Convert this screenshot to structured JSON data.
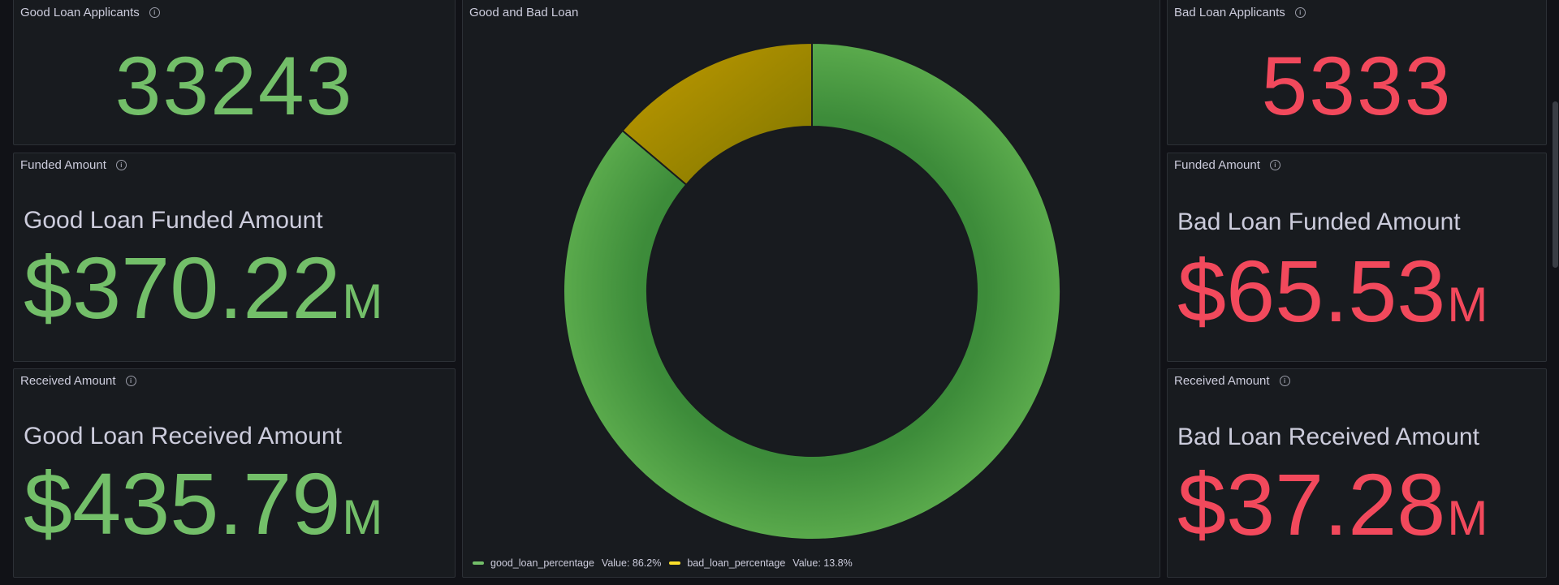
{
  "good_applicants": {
    "title": "Good Loan Applicants",
    "value": "33243"
  },
  "good_funded": {
    "title": "Funded Amount",
    "label": "Good Loan Funded Amount",
    "value": "$370.22",
    "unit": "M"
  },
  "good_received": {
    "title": "Received Amount",
    "label": "Good Loan Received Amount",
    "value": "$435.79",
    "unit": "M"
  },
  "donut_panel": {
    "title": "Good and Bad Loan",
    "legend": [
      {
        "name": "good_loan_percentage",
        "value_text": "Value: 86.2%",
        "color": "#73bf69"
      },
      {
        "name": "bad_loan_percentage",
        "value_text": "Value: 13.8%",
        "color": "#fade2a"
      }
    ]
  },
  "chart_data": {
    "type": "pie",
    "donut": true,
    "title": "Good and Bad Loan",
    "series": [
      {
        "name": "good_loan_percentage",
        "value": 86.2,
        "color": "#56a64b"
      },
      {
        "name": "bad_loan_percentage",
        "value": 13.8,
        "color": "#b99300"
      }
    ],
    "legend_placement": "bottom"
  },
  "bad_applicants": {
    "title": "Bad Loan Applicants",
    "value": "5333"
  },
  "bad_funded": {
    "title": "Funded Amount",
    "label": "Bad Loan Funded Amount",
    "value": "$65.53",
    "unit": "M"
  },
  "bad_received": {
    "title": "Received Amount",
    "label": "Bad Loan Received Amount",
    "value": "$37.28",
    "unit": "M"
  },
  "colors": {
    "good": "#73bf69",
    "bad": "#f2495c",
    "panel_bg": "#181b1f",
    "page_bg": "#111217"
  }
}
